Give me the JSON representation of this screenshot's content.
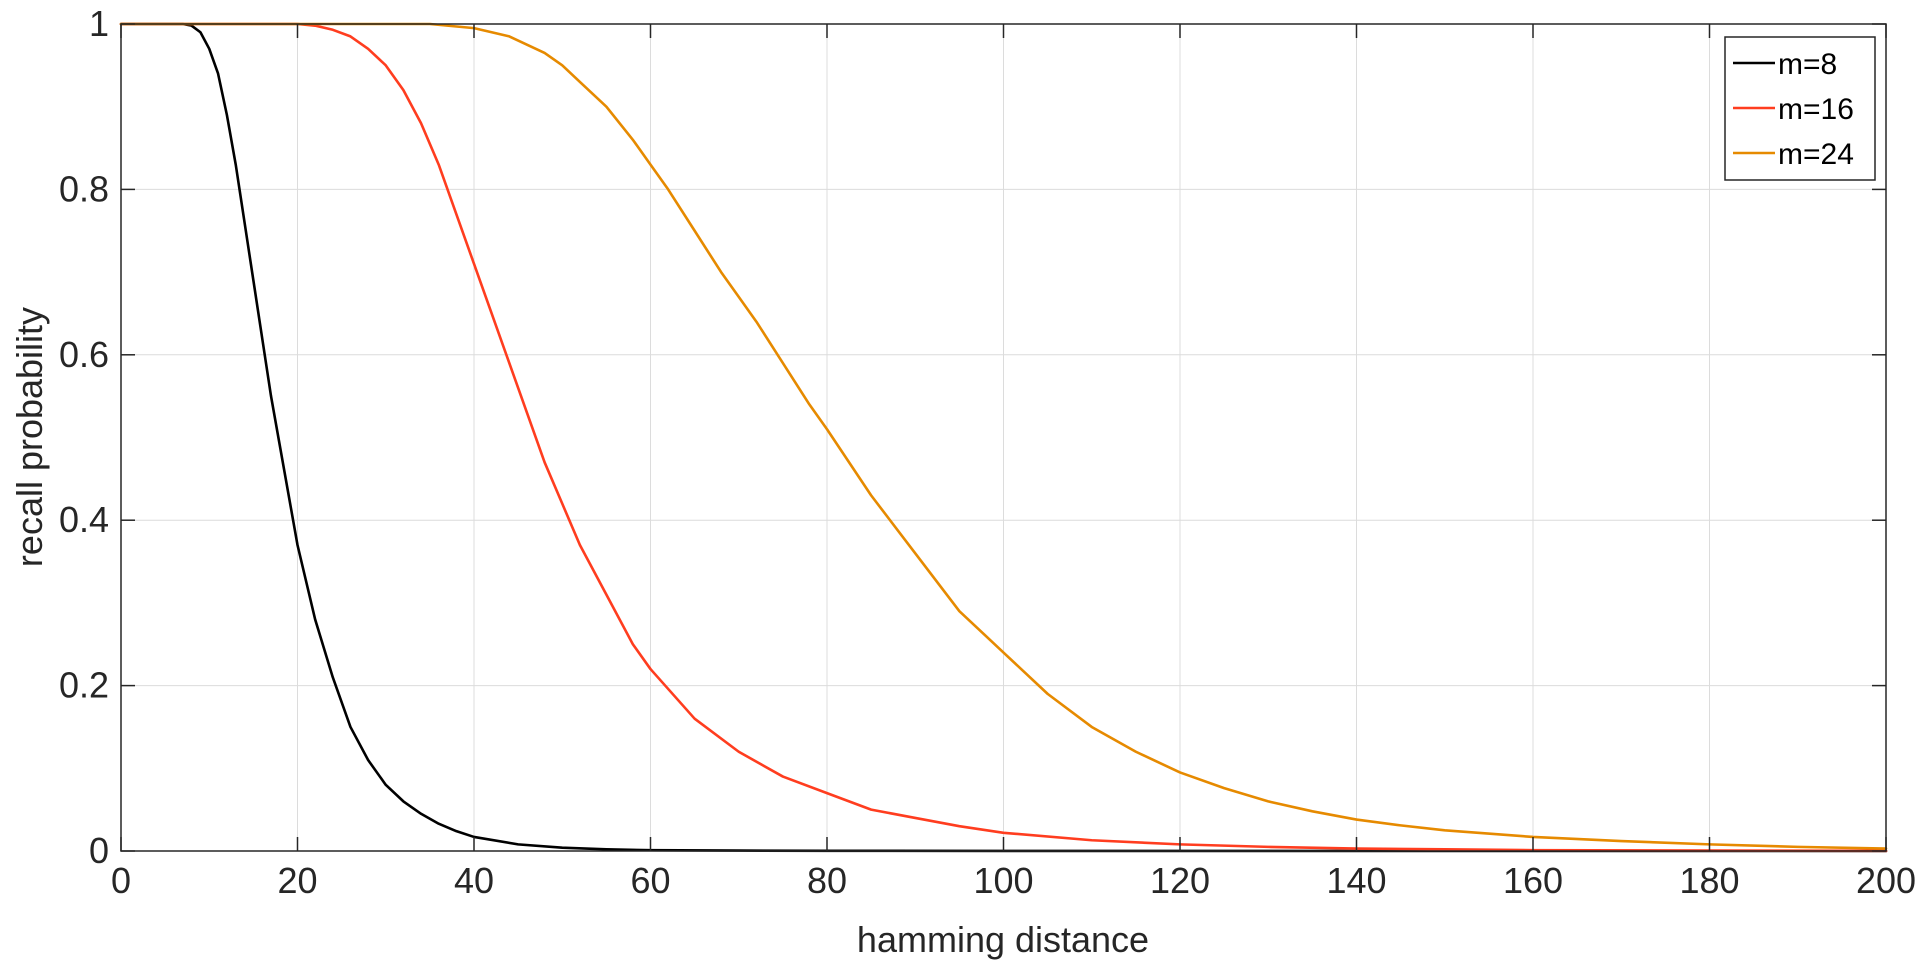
{
  "chart_data": {
    "type": "line",
    "title": "",
    "xlabel": "hamming distance",
    "ylabel": "recall probability",
    "xlim": [
      0,
      200
    ],
    "ylim": [
      0,
      1
    ],
    "xticks": [
      0,
      20,
      40,
      60,
      80,
      100,
      120,
      140,
      160,
      180,
      200
    ],
    "yticks": [
      0,
      0.2,
      0.4,
      0.6,
      0.8,
      1
    ],
    "xtick_labels": [
      "0",
      "20",
      "40",
      "60",
      "80",
      "100",
      "120",
      "140",
      "160",
      "180",
      "200"
    ],
    "ytick_labels": [
      "0",
      "0.2",
      "0.4",
      "0.6",
      "0.8",
      "1"
    ],
    "grid": true,
    "legend_position": "top-right",
    "series": [
      {
        "name": "m=8",
        "color": "#000000",
        "x": [
          0,
          7,
          8,
          9,
          10,
          11,
          12,
          13,
          14,
          15,
          16,
          17,
          18,
          19,
          20,
          22,
          24,
          26,
          28,
          30,
          32,
          34,
          36,
          38,
          40,
          45,
          50,
          55,
          60,
          70,
          80,
          100,
          150,
          200
        ],
        "y": [
          1.0,
          1.0,
          0.998,
          0.99,
          0.97,
          0.94,
          0.89,
          0.83,
          0.76,
          0.69,
          0.62,
          0.55,
          0.49,
          0.43,
          0.37,
          0.28,
          0.21,
          0.15,
          0.11,
          0.08,
          0.06,
          0.045,
          0.033,
          0.024,
          0.017,
          0.008,
          0.004,
          0.002,
          0.001,
          0.0005,
          0.0002,
          0.0001,
          0.0,
          0.0
        ]
      },
      {
        "name": "m=16",
        "color": "#ff3d1f",
        "x": [
          0,
          20,
          22,
          24,
          26,
          28,
          30,
          32,
          34,
          36,
          38,
          40,
          42,
          44,
          46,
          48,
          50,
          52,
          55,
          58,
          60,
          65,
          70,
          75,
          80,
          85,
          90,
          95,
          100,
          110,
          120,
          130,
          140,
          150,
          160,
          180,
          200
        ],
        "y": [
          1.0,
          1.0,
          0.998,
          0.993,
          0.985,
          0.97,
          0.95,
          0.92,
          0.88,
          0.83,
          0.77,
          0.71,
          0.65,
          0.59,
          0.53,
          0.47,
          0.42,
          0.37,
          0.31,
          0.25,
          0.22,
          0.16,
          0.12,
          0.09,
          0.07,
          0.05,
          0.04,
          0.03,
          0.022,
          0.013,
          0.008,
          0.005,
          0.003,
          0.002,
          0.001,
          0.0005,
          0.0002
        ]
      },
      {
        "name": "m=24",
        "color": "#e68a00",
        "x": [
          0,
          35,
          40,
          42,
          44,
          46,
          48,
          50,
          52,
          55,
          58,
          60,
          62,
          65,
          68,
          70,
          72,
          75,
          78,
          80,
          85,
          90,
          95,
          100,
          105,
          110,
          115,
          120,
          125,
          130,
          135,
          140,
          145,
          150,
          160,
          170,
          180,
          190,
          200
        ],
        "y": [
          1.0,
          1.0,
          0.995,
          0.99,
          0.985,
          0.975,
          0.965,
          0.95,
          0.93,
          0.9,
          0.86,
          0.83,
          0.8,
          0.75,
          0.7,
          0.67,
          0.64,
          0.59,
          0.54,
          0.51,
          0.43,
          0.36,
          0.29,
          0.24,
          0.19,
          0.15,
          0.12,
          0.095,
          0.076,
          0.06,
          0.048,
          0.038,
          0.031,
          0.025,
          0.017,
          0.012,
          0.008,
          0.005,
          0.003
        ]
      }
    ]
  }
}
